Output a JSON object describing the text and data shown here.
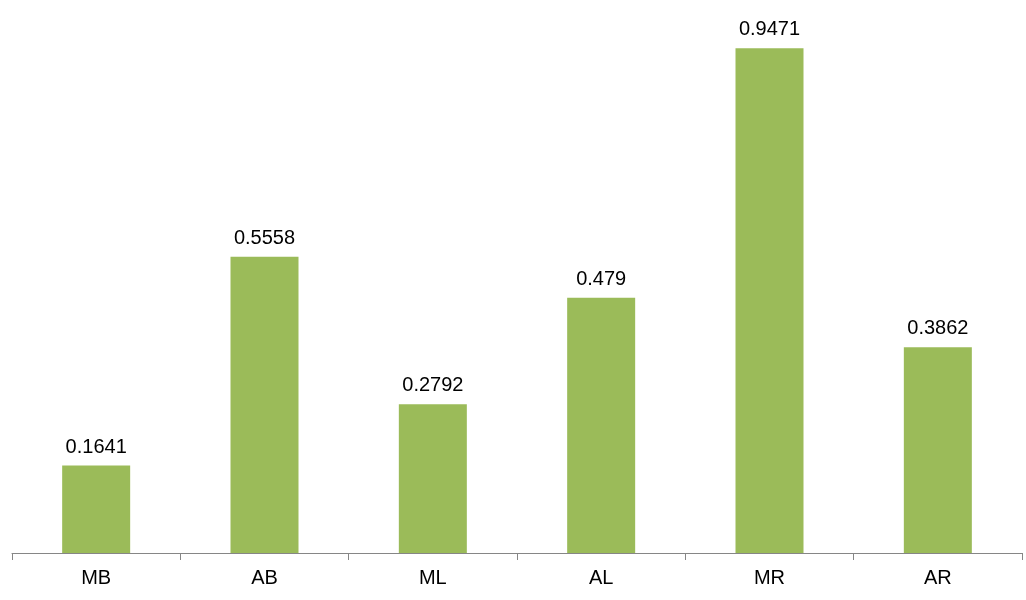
{
  "chart_data": {
    "type": "bar",
    "categories": [
      "MB",
      "AB",
      "ML",
      "AL",
      "MR",
      "AR"
    ],
    "values": [
      0.1641,
      0.5558,
      0.2792,
      0.479,
      0.9471,
      0.3862
    ],
    "color": "#9bbb59",
    "data_labels": true
  }
}
